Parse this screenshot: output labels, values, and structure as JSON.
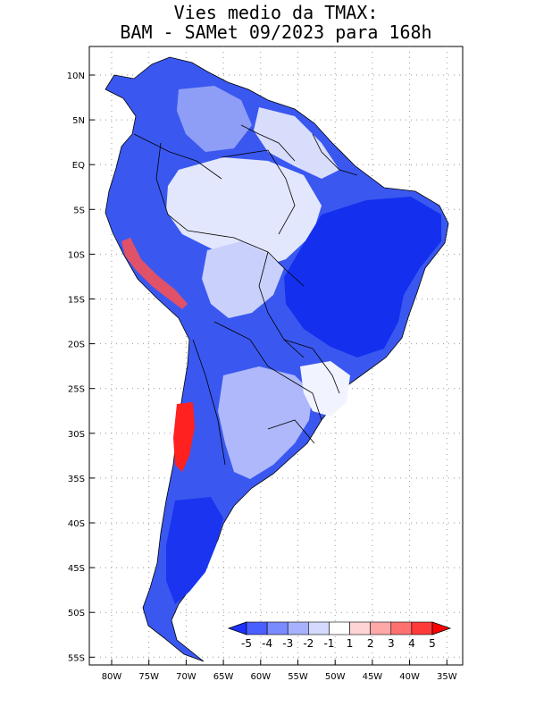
{
  "title_line1": "Vies medio da TMAX:",
  "title_line2": "BAM - SAMet 09/2023  para 168h",
  "map": {
    "region": "South America",
    "variable": "TMAX bias",
    "lat_labels": [
      "10N",
      "5N",
      "EQ",
      "5S",
      "10S",
      "15S",
      "20S",
      "25S",
      "30S",
      "35S",
      "40S",
      "45S",
      "50S",
      "55S"
    ],
    "lon_labels": [
      "80W",
      "75W",
      "70W",
      "65W",
      "60W",
      "55W",
      "50W",
      "45W",
      "40W",
      "35W"
    ]
  },
  "colorbar": {
    "labels": [
      "-5",
      "-4",
      "-3",
      "-2",
      "-1",
      "1",
      "2",
      "3",
      "4",
      "5"
    ],
    "colors": [
      "#1e32ff",
      "#4a5fff",
      "#7a8aff",
      "#a7b2ff",
      "#d4daff",
      "#ffffff",
      "#ffd4d4",
      "#ffa8a8",
      "#ff7070",
      "#ff3a3a",
      "#ff0000"
    ]
  },
  "colors": {
    "deep_blue": "#1432f0",
    "mid_blue": "#4b64f5",
    "light_blue": "#aab4fa",
    "pale": "#dfe3fc",
    "red": "#ff2a2a",
    "border": "#000000"
  }
}
